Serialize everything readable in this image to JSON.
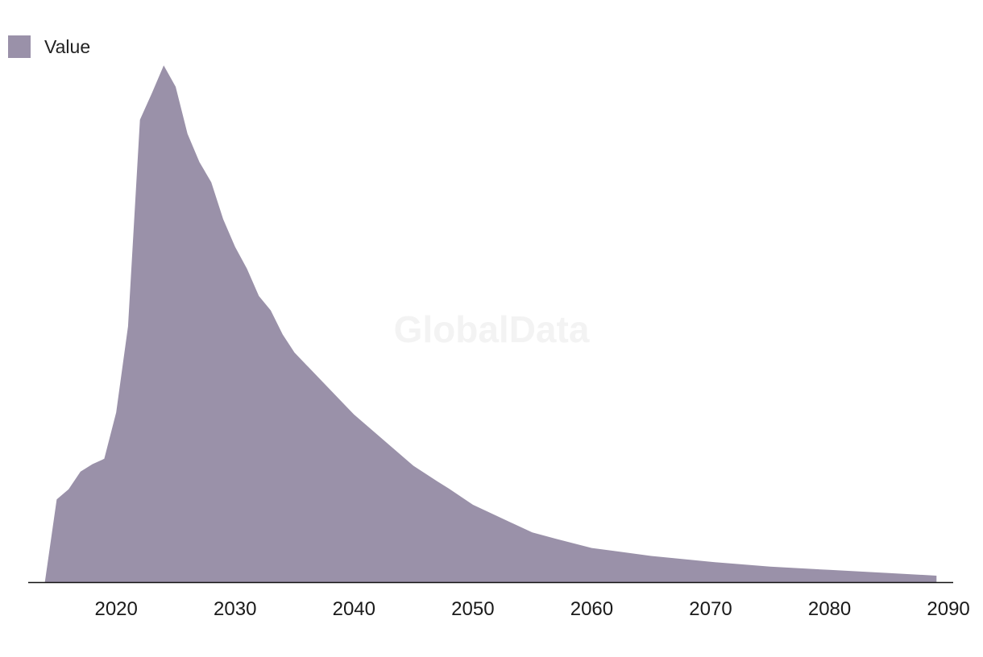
{
  "chart_data": {
    "type": "area",
    "watermark": "GlobalData",
    "series": [
      {
        "name": "Value",
        "color": "#9a91a9"
      }
    ],
    "x": [
      2014,
      2015,
      2016,
      2017,
      2018,
      2019,
      2020,
      2021,
      2022,
      2023,
      2024,
      2025,
      2026,
      2027,
      2028,
      2029,
      2030,
      2031,
      2032,
      2033,
      2034,
      2035,
      2040,
      2045,
      2047,
      2048,
      2050,
      2055,
      2057,
      2060,
      2065,
      2070,
      2075,
      2080,
      2085,
      2089
    ],
    "values": [
      0,
      15.5,
      17.4,
      20.7,
      22.1,
      23.1,
      31.8,
      47.9,
      86.6,
      91.6,
      96.8,
      92.8,
      84.0,
      78.7,
      74.9,
      68.0,
      62.8,
      58.7,
      53.6,
      50.9,
      46.4,
      43.0,
      31.4,
      21.8,
      18.9,
      17.5,
      14.5,
      9.3,
      8.1,
      6.4,
      4.9,
      3.8,
      2.9,
      2.3,
      1.7,
      1.2
    ],
    "xticks": [
      2020,
      2030,
      2040,
      2050,
      2060,
      2070,
      2080,
      2090
    ],
    "xlim": [
      2012.6,
      2090.4
    ],
    "ylim": [
      0,
      100
    ],
    "grid": false,
    "legend_position": "top-left"
  }
}
